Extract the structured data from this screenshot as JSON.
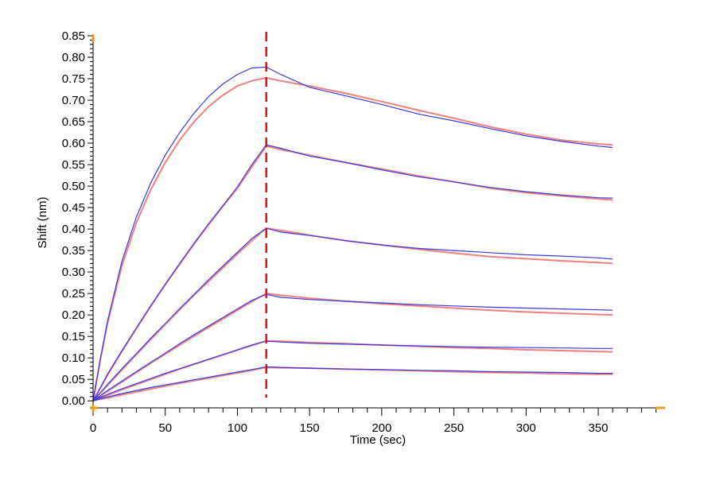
{
  "chart_data": {
    "type": "line",
    "title": "",
    "xlabel": "Time (sec)",
    "ylabel": "Shift (nm)",
    "xlim": [
      0,
      393
    ],
    "ylim": [
      -0.02,
      0.85
    ],
    "x_ticks": [
      0,
      50,
      100,
      150,
      200,
      250,
      300,
      350
    ],
    "x_tick_labels": [
      "0",
      "50",
      "100",
      "150",
      "200",
      "250",
      "300",
      "350"
    ],
    "y_ticks": [
      0,
      0.05,
      0.1,
      0.15,
      0.2,
      0.25,
      0.3,
      0.35,
      0.4,
      0.45,
      0.5,
      0.55,
      0.6,
      0.65,
      0.7,
      0.75,
      0.8,
      0.85
    ],
    "y_tick_labels": [
      "0.00",
      "0.05",
      "0.10",
      "0.15",
      "0.20",
      "0.25",
      "0.30",
      "0.35",
      "0.40",
      "0.45",
      "0.50",
      "0.55",
      "0.60",
      "0.65",
      "0.70",
      "0.75",
      "0.80",
      "0.85"
    ],
    "grid": false,
    "vertical_marker_x": 120,
    "colors": {
      "measured": "#3a3ae6",
      "fit": "#f08080",
      "marker": "#dd1111",
      "axis_end": "#e69b1e"
    },
    "x": [
      0,
      5,
      10,
      20,
      30,
      40,
      50,
      60,
      70,
      80,
      90,
      100,
      110,
      120,
      130,
      150,
      175,
      200,
      225,
      250,
      275,
      300,
      325,
      350,
      360
    ],
    "series": [
      {
        "fit": [
          0,
          0.095,
          0.18,
          0.315,
          0.415,
          0.492,
          0.555,
          0.607,
          0.65,
          0.685,
          0.712,
          0.733,
          0.745,
          0.752,
          0.745,
          0.733,
          0.716,
          0.697,
          0.677,
          0.658,
          0.638,
          0.621,
          0.607,
          0.598,
          0.596
        ],
        "measured": [
          0,
          0.098,
          0.185,
          0.325,
          0.428,
          0.508,
          0.572,
          0.625,
          0.67,
          0.708,
          0.738,
          0.76,
          0.775,
          0.777,
          0.76,
          0.73,
          0.71,
          0.69,
          0.668,
          0.652,
          0.634,
          0.617,
          0.604,
          0.593,
          0.59
        ]
      },
      {
        "fit": [
          0,
          0.03,
          0.06,
          0.115,
          0.168,
          0.22,
          0.27,
          0.318,
          0.365,
          0.41,
          0.453,
          0.495,
          0.545,
          0.593,
          0.585,
          0.572,
          0.555,
          0.54,
          0.524,
          0.51,
          0.495,
          0.485,
          0.477,
          0.47,
          0.468
        ],
        "measured": [
          0,
          0.03,
          0.062,
          0.117,
          0.17,
          0.222,
          0.272,
          0.32,
          0.367,
          0.412,
          0.455,
          0.498,
          0.55,
          0.596,
          0.588,
          0.57,
          0.555,
          0.538,
          0.522,
          0.51,
          0.497,
          0.487,
          0.479,
          0.473,
          0.472
        ]
      },
      {
        "fit": [
          0,
          0.018,
          0.036,
          0.072,
          0.108,
          0.143,
          0.178,
          0.212,
          0.246,
          0.278,
          0.31,
          0.342,
          0.373,
          0.402,
          0.397,
          0.386,
          0.373,
          0.363,
          0.353,
          0.344,
          0.336,
          0.331,
          0.326,
          0.322,
          0.32
        ],
        "measured": [
          0,
          0.019,
          0.038,
          0.075,
          0.11,
          0.146,
          0.18,
          0.215,
          0.248,
          0.282,
          0.314,
          0.346,
          0.378,
          0.402,
          0.393,
          0.385,
          0.373,
          0.363,
          0.355,
          0.35,
          0.345,
          0.34,
          0.337,
          0.333,
          0.33
        ]
      },
      {
        "fit": [
          0,
          0.011,
          0.022,
          0.044,
          0.066,
          0.088,
          0.109,
          0.13,
          0.151,
          0.171,
          0.191,
          0.211,
          0.231,
          0.25,
          0.246,
          0.239,
          0.232,
          0.226,
          0.221,
          0.216,
          0.211,
          0.207,
          0.204,
          0.201,
          0.2
        ],
        "measured": [
          0,
          0.012,
          0.024,
          0.046,
          0.068,
          0.09,
          0.111,
          0.133,
          0.154,
          0.174,
          0.194,
          0.214,
          0.234,
          0.248,
          0.241,
          0.236,
          0.232,
          0.228,
          0.224,
          0.221,
          0.218,
          0.216,
          0.214,
          0.212,
          0.211
        ]
      },
      {
        "fit": [
          0,
          0.007,
          0.013,
          0.026,
          0.038,
          0.05,
          0.062,
          0.074,
          0.085,
          0.096,
          0.107,
          0.118,
          0.129,
          0.14,
          0.139,
          0.136,
          0.133,
          0.13,
          0.127,
          0.124,
          0.122,
          0.119,
          0.117,
          0.115,
          0.114
        ],
        "measured": [
          0,
          0.008,
          0.015,
          0.028,
          0.04,
          0.052,
          0.064,
          0.075,
          0.086,
          0.097,
          0.108,
          0.119,
          0.13,
          0.139,
          0.137,
          0.134,
          0.132,
          0.13,
          0.128,
          0.126,
          0.125,
          0.124,
          0.123,
          0.122,
          0.122
        ]
      },
      {
        "fit": [
          0,
          0.004,
          0.007,
          0.014,
          0.021,
          0.028,
          0.034,
          0.041,
          0.047,
          0.053,
          0.059,
          0.065,
          0.071,
          0.078,
          0.077,
          0.076,
          0.074,
          0.072,
          0.07,
          0.068,
          0.066,
          0.065,
          0.063,
          0.062,
          0.062
        ],
        "measured": [
          0,
          0.005,
          0.009,
          0.017,
          0.024,
          0.031,
          0.037,
          0.043,
          0.049,
          0.055,
          0.061,
          0.067,
          0.073,
          0.079,
          0.078,
          0.076,
          0.074,
          0.073,
          0.071,
          0.07,
          0.068,
          0.067,
          0.066,
          0.064,
          0.064
        ]
      }
    ]
  }
}
